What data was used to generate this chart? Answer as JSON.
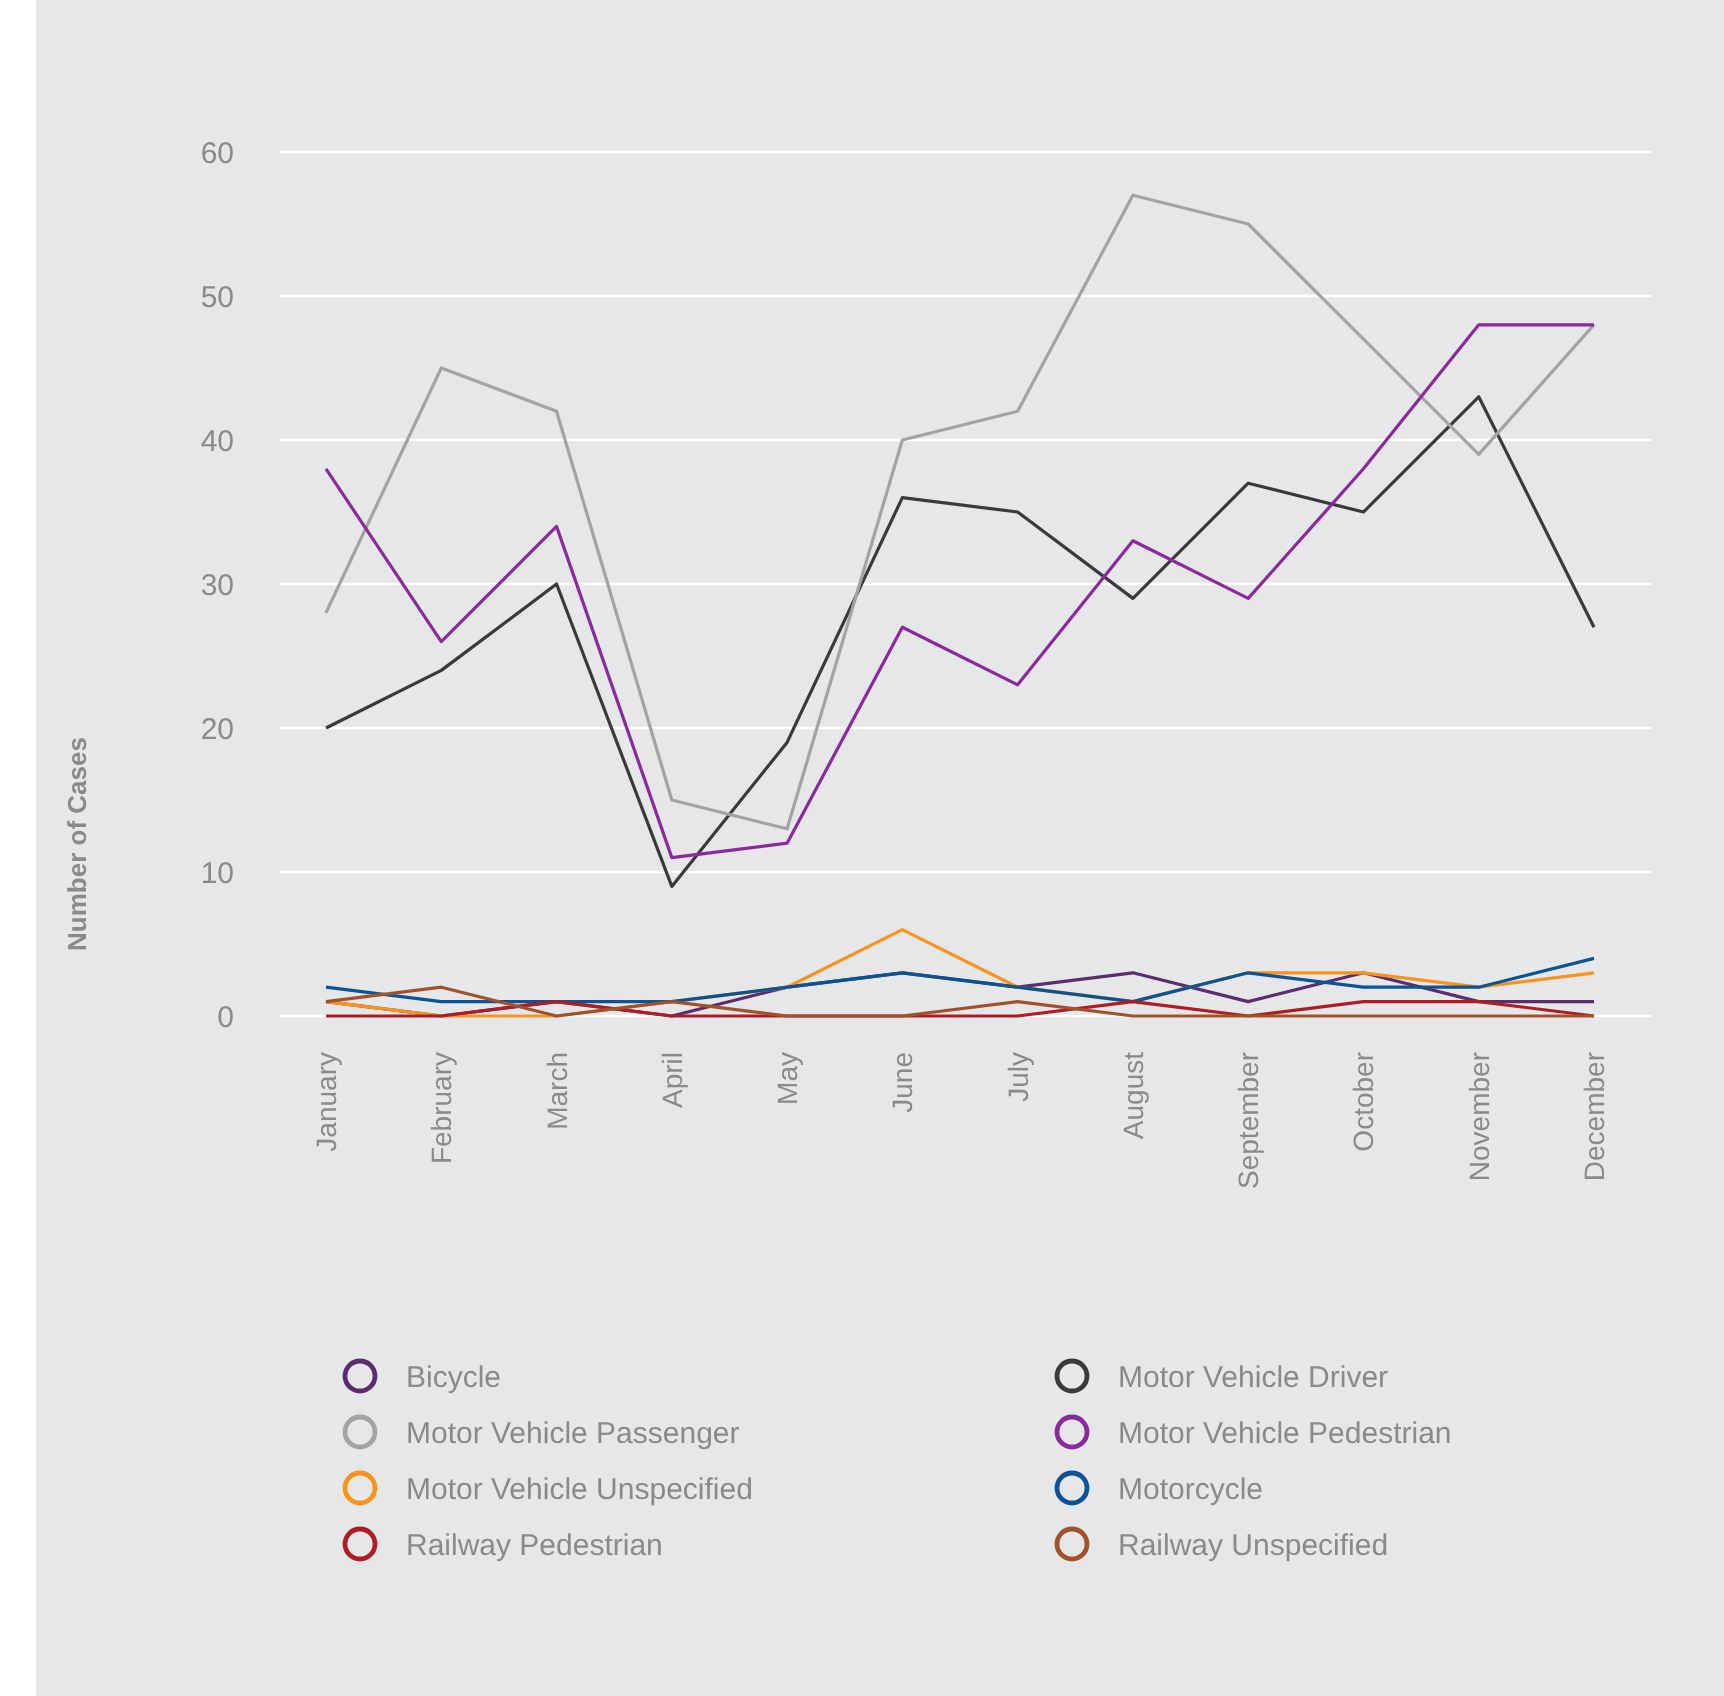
{
  "chart_data": {
    "type": "line",
    "ylabel": "Number of Cases",
    "categories": [
      "January",
      "February",
      "March",
      "April",
      "May",
      "June",
      "July",
      "August",
      "September",
      "October",
      "November",
      "December"
    ],
    "ylim": [
      0,
      60
    ],
    "yticks": [
      0,
      10,
      20,
      30,
      40,
      50,
      60
    ],
    "grid": "y",
    "legend": "bottom",
    "marker": "none",
    "line_style": "solid",
    "series": [
      {
        "name": "Bicycle",
        "color": "#5c2d6e",
        "values": [
          1,
          0,
          1,
          0,
          2,
          3,
          2,
          3,
          1,
          3,
          1,
          1
        ]
      },
      {
        "name": "Motor Vehicle Driver",
        "color": "#3a3a3c",
        "values": [
          20,
          24,
          30,
          9,
          19,
          36,
          35,
          29,
          37,
          35,
          43,
          27
        ]
      },
      {
        "name": "Motor Vehicle Passenger",
        "color": "#a3a3a5",
        "values": [
          28,
          45,
          42,
          15,
          13,
          40,
          42,
          57,
          55,
          47,
          39,
          48
        ]
      },
      {
        "name": "Motor Vehicle Pedestrian",
        "color": "#8a2a9b",
        "values": [
          38,
          26,
          34,
          11,
          12,
          27,
          23,
          33,
          29,
          38,
          48,
          48
        ]
      },
      {
        "name": "Motor Vehicle Unspecified",
        "color": "#f7941d",
        "values": [
          1,
          0,
          0,
          1,
          2,
          6,
          2,
          1,
          3,
          3,
          2,
          3
        ]
      },
      {
        "name": "Motorcycle",
        "color": "#0b5394",
        "values": [
          2,
          1,
          1,
          1,
          2,
          3,
          2,
          1,
          3,
          2,
          2,
          4
        ]
      },
      {
        "name": "Railway Pedestrian",
        "color": "#b01c24",
        "values": [
          0,
          0,
          1,
          0,
          0,
          0,
          0,
          1,
          0,
          1,
          1,
          0
        ]
      },
      {
        "name": "Railway Unspecified",
        "color": "#a0522d",
        "values": [
          1,
          2,
          0,
          1,
          0,
          0,
          1,
          0,
          0,
          0,
          0,
          0
        ]
      }
    ]
  }
}
